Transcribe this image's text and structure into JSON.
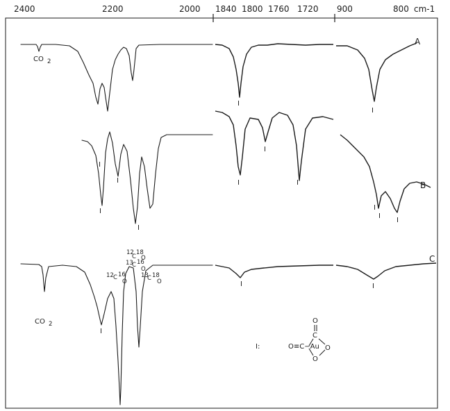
{
  "chart_data": {
    "type": "line",
    "xlabel_unit": "cm-1",
    "panels": [
      {
        "range": [
          2400,
          1890
        ],
        "ticks": [
          "2400",
          "2200",
          "2000"
        ]
      },
      {
        "range": [
          1855,
          1685
        ],
        "ticks": [
          "1840",
          "1800",
          "1760",
          "1720"
        ]
      },
      {
        "range": [
          1000,
          760
        ],
        "ticks": [
          "900",
          "800"
        ]
      }
    ],
    "series": [
      {
        "name": "A"
      },
      {
        "name": "B"
      },
      {
        "name": "C"
      }
    ],
    "band_labels": {
      "I": "I",
      "co2": "CO",
      "co2_sub": "2"
    },
    "isotope_labels": {
      "c12_o16": {
        "top": "12",
        "mid": "C",
        "sup": "16",
        "bot": "O"
      },
      "c13_o16": {
        "top": "13",
        "mid": "C",
        "sup": "16",
        "bot": "O"
      },
      "c12_o18": {
        "top": "12",
        "mid": "C",
        "sup": "18",
        "bot": "O"
      },
      "c13_o18": {
        "top": "13",
        "mid": "C",
        "sup": "18",
        "bot": "O"
      }
    },
    "legend": {
      "key": "I:",
      "formula": "O≡C−Au",
      "ring_o_top": "O",
      "ring_o_right": "O",
      "ring_o_bottom": "O",
      "ring_c": "C"
    }
  }
}
